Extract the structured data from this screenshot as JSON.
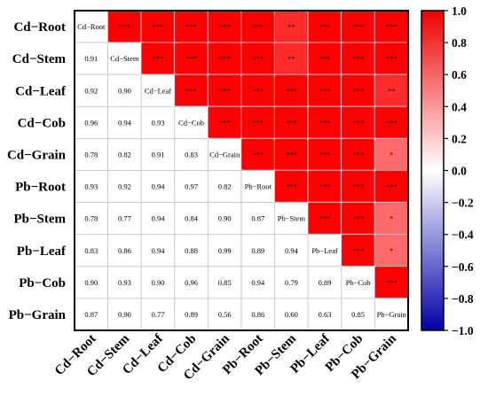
{
  "chart_data": {
    "type": "heatmap",
    "variables": [
      "Cd−Root",
      "Cd−Stem",
      "Cd−Leaf",
      "Cd−Cob",
      "Cd−Grain",
      "Pb−Root",
      "Pb−Stem",
      "Pb−Leaf",
      "Pb−Cob",
      "Pb−Grain"
    ],
    "diagonal_labels": [
      "Cd−Root",
      "Cd−Stem",
      "Cd−Leaf",
      "Cd−Cob",
      "Cd−Grain",
      "Pb−Root",
      "Pb−Stem",
      "Pb−Leaf",
      "Pb−Cob",
      "Pb−Grain"
    ],
    "lower_values": [
      [],
      [
        "0.91"
      ],
      [
        "0.92",
        "0.90"
      ],
      [
        "0.96",
        "0.94",
        "0.93"
      ],
      [
        "0.78",
        "0.82",
        "0.91",
        "0.83"
      ],
      [
        "0.93",
        "0.92",
        "0.94",
        "0.97",
        "0.82"
      ],
      [
        "0.78",
        "0.77",
        "0.94",
        "0.84",
        "0.90",
        "0.87"
      ],
      [
        "0.83",
        "0.86",
        "0.94",
        "0.88",
        "0.99",
        "0.89",
        "0.94"
      ],
      [
        "0.90",
        "0.93",
        "0.90",
        "0.96",
        "0.85",
        "0.94",
        "0.79",
        "0.89"
      ],
      [
        "0.87",
        "0.90",
        "0.77",
        "0.89",
        "0.56",
        "0.86",
        "0.60",
        "0.63",
        "0.85"
      ]
    ],
    "upper_significance": [
      [
        "",
        "***",
        "***",
        "***",
        "***",
        "***",
        "**",
        "***",
        "***",
        "***"
      ],
      [
        "",
        "",
        "***",
        "***",
        "***",
        "***",
        "**",
        "***",
        "***",
        "***"
      ],
      [
        "",
        "",
        "",
        "***",
        "***",
        "***",
        "***",
        "***",
        "***",
        "**"
      ],
      [
        "",
        "",
        "",
        "",
        "***",
        "***",
        "***",
        "***",
        "***",
        "***"
      ],
      [
        "",
        "",
        "",
        "",
        "",
        "***",
        "***",
        "***",
        "***",
        "*"
      ],
      [
        "",
        "",
        "",
        "",
        "",
        "",
        "***",
        "***",
        "***",
        "***"
      ],
      [
        "",
        "",
        "",
        "",
        "",
        "",
        "",
        "***",
        "***",
        "*"
      ],
      [
        "",
        "",
        "",
        "",
        "",
        "",
        "",
        "",
        "***",
        "*"
      ],
      [
        "",
        "",
        "",
        "",
        "",
        "",
        "",
        "",
        "",
        "***"
      ],
      [
        "",
        "",
        "",
        "",
        "",
        "",
        "",
        "",
        "",
        ""
      ]
    ],
    "colorbar": {
      "range": [
        -1.0,
        1.0
      ],
      "ticks": [
        "1.0",
        "0.8",
        "0.6",
        "0.4",
        "0.2",
        "0.0",
        "−0.2",
        "−0.4",
        "−0.6",
        "−0.8",
        "−1.0"
      ],
      "low_color": "#0000cc",
      "mid_color": "#ffffff",
      "high_color": "#ff0000"
    },
    "upper_fill_color": "#ff0000",
    "grid_color": "#cfc4d6",
    "border_color": "#000000"
  }
}
